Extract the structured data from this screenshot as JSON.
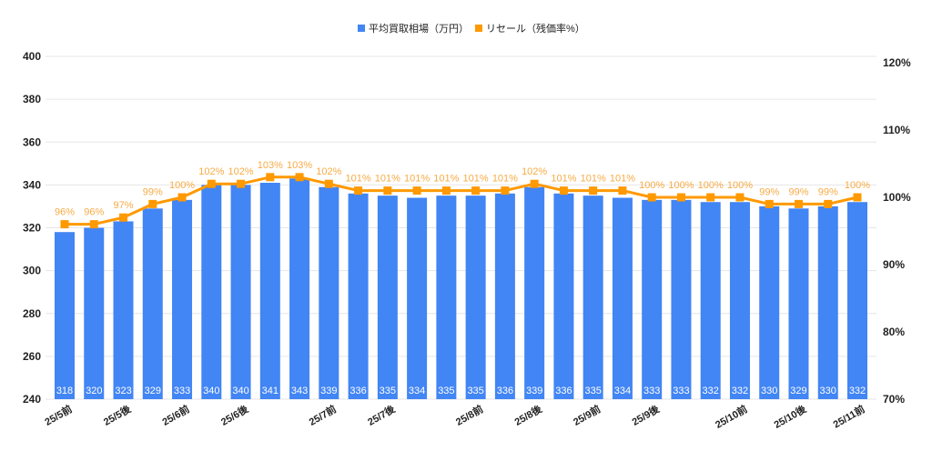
{
  "colors": {
    "bar": "#4285F4",
    "line": "#FF9900",
    "line_label": "#F7AB45",
    "grid": "#E6E6E6",
    "axis_text": "#222222"
  },
  "legend": {
    "items": [
      {
        "label": "平均買取相場（万円）",
        "color": "#4285F4",
        "icon": "square-marker-icon"
      },
      {
        "label": "リセール（残価率%）",
        "color": "#FF9900",
        "icon": "square-marker-icon"
      }
    ]
  },
  "chart_data": {
    "type": "bar",
    "title": "",
    "xlabel": "",
    "ylabel": "",
    "legend_position": "top",
    "grid": true,
    "categories": [
      "25/5前",
      "",
      "25/5後",
      "",
      "25/6前",
      "",
      "25/6後",
      "",
      "",
      "25/7前",
      "",
      "25/7後",
      "",
      "",
      "25/8前",
      "",
      "25/8後",
      "",
      "25/9前",
      "",
      "25/9後",
      "",
      "",
      "25/10前",
      "",
      "25/10後",
      "",
      "25/11前"
    ],
    "x_tick_labels": [
      {
        "index": 0,
        "label": "25/5前"
      },
      {
        "index": 2,
        "label": "25/5後"
      },
      {
        "index": 4,
        "label": "25/6前"
      },
      {
        "index": 6,
        "label": "25/6後"
      },
      {
        "index": 9,
        "label": "25/7前"
      },
      {
        "index": 11,
        "label": "25/7後"
      },
      {
        "index": 14,
        "label": "25/8前"
      },
      {
        "index": 16,
        "label": "25/8後"
      },
      {
        "index": 18,
        "label": "25/9前"
      },
      {
        "index": 20,
        "label": "25/9後"
      },
      {
        "index": 23,
        "label": "25/10前"
      },
      {
        "index": 25,
        "label": "25/10後"
      },
      {
        "index": 27,
        "label": "25/11前"
      }
    ],
    "series": [
      {
        "name": "平均買取相場（万円）",
        "type": "bar",
        "axis": "left",
        "values": [
          318,
          320,
          323,
          329,
          333,
          340,
          340,
          341,
          343,
          339,
          336,
          335,
          334,
          335,
          335,
          336,
          339,
          336,
          335,
          334,
          333,
          333,
          332,
          332,
          330,
          329,
          330,
          332
        ]
      },
      {
        "name": "リセール（残価率%）",
        "type": "line",
        "axis": "right",
        "values": [
          96,
          96,
          97,
          99,
          100,
          102,
          102,
          103,
          103,
          102,
          101,
          101,
          101,
          101,
          101,
          101,
          102,
          101,
          101,
          101,
          100,
          100,
          100,
          100,
          99,
          99,
          99,
          100
        ]
      }
    ],
    "left_axis": {
      "min": 240,
      "max": 400,
      "ticks": [
        240,
        260,
        280,
        300,
        320,
        340,
        360,
        380,
        400
      ]
    },
    "right_axis": {
      "min": 70,
      "max": 120,
      "ticks": [
        "70%",
        "80%",
        "90%",
        "100%",
        "110%",
        "120%"
      ],
      "tick_values": [
        70,
        80,
        90,
        100,
        110,
        120
      ]
    }
  }
}
